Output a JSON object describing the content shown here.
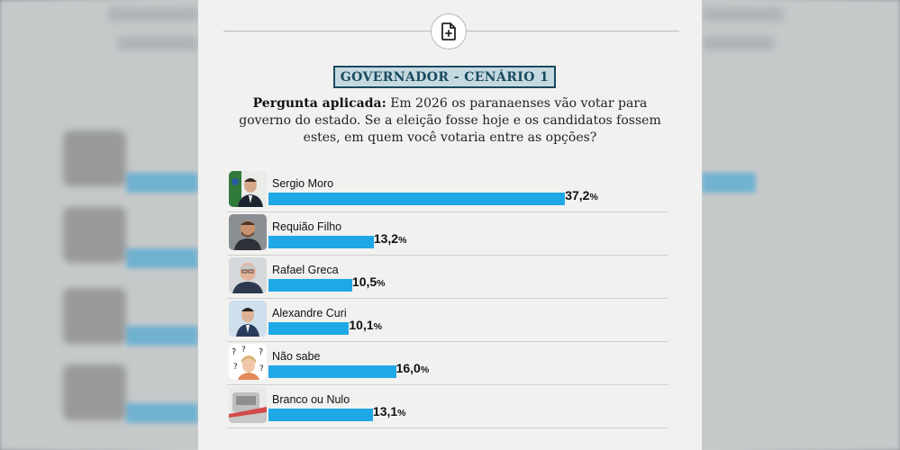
{
  "badge": "GOVERNADOR - CENÁRIO 1",
  "question": {
    "label": "Pergunta aplicada:",
    "text": " Em 2026 os paranaenses vão votar para governo do estado. Se a eleição fosse hoje e os candidatos fossem estes, em quem você votaria entre as opções?"
  },
  "chart_data": {
    "type": "bar",
    "orientation": "horizontal",
    "unit": "%",
    "categories": [
      "Sergio Moro",
      "Requião Filho",
      "Rafael Greca",
      "Alexandre Curi",
      "Não sabe",
      "Branco ou Nulo"
    ],
    "values": [
      37.2,
      13.2,
      10.5,
      10.1,
      16.0,
      13.1
    ],
    "value_labels": [
      "37,2",
      "13,2",
      "10,5",
      "10,1",
      "16,0",
      "13,1"
    ],
    "bar_color": "#1fa8e6"
  },
  "icons": {
    "header": "add-document-icon"
  }
}
